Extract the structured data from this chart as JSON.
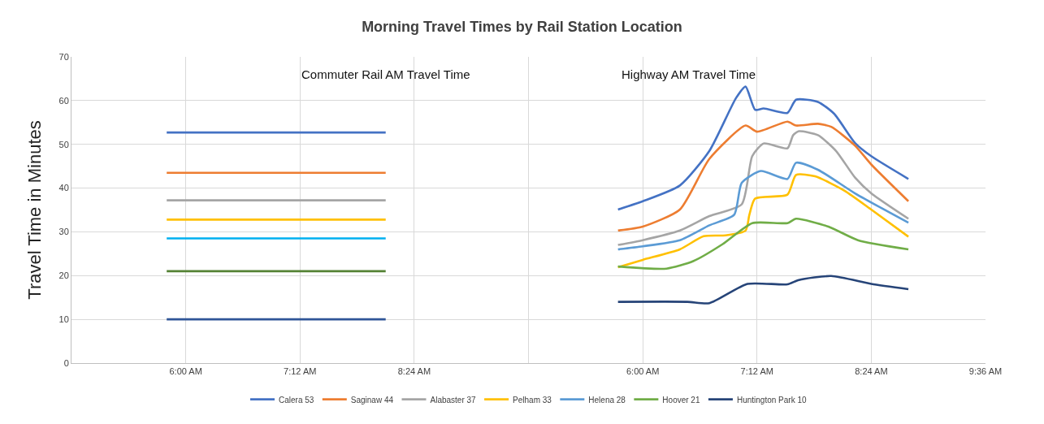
{
  "chart_data": [
    {
      "type": "line",
      "title": "Morning Travel Times by Rail Station Location",
      "ylabel": "Travel Time in Minutes",
      "annotations": [
        "Commuter Rail AM Travel Time"
      ],
      "xlim": [
        4.8,
        9.6
      ],
      "xticks": [
        {
          "value": 4.8,
          "label": null
        },
        {
          "value": 6,
          "label": "6:00 AM"
        },
        {
          "value": 7.2,
          "label": "7:12 AM"
        },
        {
          "value": 8.4,
          "label": "8:24 AM"
        }
      ],
      "ylim": [
        0,
        70
      ],
      "yticks": [
        0,
        10,
        20,
        30,
        40,
        50,
        60,
        70
      ],
      "grid": true,
      "marker": "none",
      "line_style": "solid",
      "legend": false,
      "series": [
        {
          "color": "#4472c4",
          "x": [
            5.8,
            8.1
          ],
          "values": [
            52.7,
            52.7
          ]
        },
        {
          "color": "#ed7d31",
          "x": [
            5.8,
            8.1
          ],
          "values": [
            43.5,
            43.5
          ]
        },
        {
          "color": "#a5a5a5",
          "x": [
            5.8,
            8.1
          ],
          "values": [
            37.2,
            37.2
          ]
        },
        {
          "color": "#ffc000",
          "x": [
            5.8,
            8.1
          ],
          "values": [
            32.8,
            32.8
          ]
        },
        {
          "color": "#00b0f0",
          "x": [
            5.8,
            8.1
          ],
          "values": [
            28.5,
            28.5
          ]
        },
        {
          "color": "#548235",
          "x": [
            5.8,
            8.1
          ],
          "values": [
            21,
            21
          ]
        },
        {
          "color": "#2f5597",
          "x": [
            5.8,
            8.1
          ],
          "values": [
            10,
            10
          ]
        }
      ]
    },
    {
      "type": "line",
      "annotations": [
        "Highway AM Travel Time"
      ],
      "xlim": [
        4.8,
        9.6
      ],
      "xticks": [
        {
          "value": 6,
          "label": "6:00 AM"
        },
        {
          "value": 7.2,
          "label": "7:12 AM"
        },
        {
          "value": 8.4,
          "label": "8:24 AM"
        },
        {
          "value": 9.6,
          "label": "9:36 AM"
        }
      ],
      "ylim": [
        0,
        70
      ],
      "yticks": [
        0,
        10,
        20,
        30,
        40,
        50,
        60,
        70
      ],
      "tick_labels": "x",
      "grid": true,
      "marker": "none",
      "line_style": "solid",
      "legend": "bottom",
      "series": [
        {
          "name": "Calera 53",
          "color": "#4472c4",
          "x": [
            5.74,
            6.0,
            6.39,
            6.7,
            6.98,
            7.08,
            7.18,
            7.27,
            7.52,
            7.61,
            7.84,
            8.01,
            8.23,
            8.4,
            8.79
          ],
          "values": [
            35.1,
            37,
            40.6,
            48.5,
            60.6,
            63.2,
            57.9,
            58.2,
            57.2,
            60.2,
            59.7,
            57,
            50.3,
            47.3,
            42.1
          ]
        },
        {
          "name": "Saginaw 44",
          "color": "#ed7d31",
          "x": [
            5.74,
            6.0,
            6.39,
            6.7,
            7.08,
            7.2,
            7.52,
            7.61,
            7.84,
            7.98,
            8.23,
            8.4,
            8.79
          ],
          "values": [
            30.3,
            31.2,
            35.1,
            46.7,
            54.3,
            52.9,
            55.2,
            54.3,
            54.7,
            54,
            49.7,
            45.4,
            37
          ]
        },
        {
          "name": "Alabaster 37",
          "color": "#a5a5a5",
          "x": [
            5.74,
            6.0,
            6.39,
            6.7,
            7.04,
            7.15,
            7.27,
            7.52,
            7.58,
            7.64,
            7.84,
            8.03,
            8.23,
            8.4,
            8.79
          ],
          "values": [
            27,
            28.1,
            30.3,
            33.6,
            36.3,
            47.3,
            50.2,
            49.1,
            52.1,
            53,
            52.1,
            48.5,
            42.4,
            38.8,
            33
          ]
        },
        {
          "name": "Pelham 33",
          "color": "#ffc000",
          "x": [
            5.74,
            6.0,
            6.39,
            6.64,
            6.87,
            7.08,
            7.12,
            7.18,
            7.52,
            7.61,
            7.81,
            8.12,
            8.4,
            8.79
          ],
          "values": [
            21.9,
            23.6,
            26,
            29,
            29.2,
            30.3,
            33.9,
            37.6,
            38.5,
            43,
            42.7,
            39.4,
            35.1,
            28.9
          ]
        },
        {
          "name": "Helena 28",
          "color": "#5b9bd5",
          "x": [
            5.74,
            6.0,
            6.39,
            6.7,
            6.96,
            7.04,
            7.24,
            7.52,
            7.61,
            7.84,
            8.23,
            8.79
          ],
          "values": [
            26,
            26.7,
            28.1,
            31.5,
            33.9,
            41.2,
            43.9,
            42.1,
            45.8,
            44.2,
            38.8,
            32.1
          ]
        },
        {
          "name": "Hoover 21",
          "color": "#70ad47",
          "x": [
            5.74,
            6.25,
            6.53,
            6.84,
            7.15,
            7.52,
            7.61,
            7.95,
            8.26,
            8.79
          ],
          "values": [
            22.1,
            21.6,
            23.3,
            27.2,
            32,
            32,
            33,
            31.2,
            28.1,
            26
          ]
        },
        {
          "name": "Huntington Park 10",
          "color": "#264478",
          "x": [
            5.74,
            6.47,
            6.7,
            7.1,
            7.52,
            7.64,
            7.98,
            8.4,
            8.79
          ],
          "values": [
            14,
            14,
            13.7,
            18.1,
            18,
            19,
            19.9,
            18.1,
            16.9
          ]
        }
      ]
    }
  ]
}
